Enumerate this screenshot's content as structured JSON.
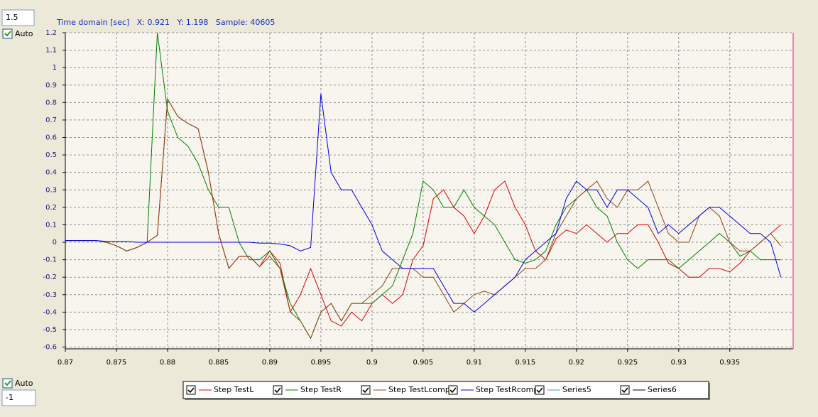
{
  "ui": {
    "top_input": "1.5",
    "top_auto": "Auto",
    "bottom_auto": "Auto",
    "bottom_input": "-1",
    "status": "Time domain [sec]   X: 0.921   Y: 1.198   Sample: 40605"
  },
  "chart_data": {
    "type": "line",
    "x": [
      0.87,
      0.871,
      0.872,
      0.873,
      0.874,
      0.875,
      0.876,
      0.877,
      0.878,
      0.879,
      0.88,
      0.881,
      0.882,
      0.883,
      0.884,
      0.885,
      0.886,
      0.887,
      0.888,
      0.889,
      0.89,
      0.891,
      0.892,
      0.893,
      0.894,
      0.895,
      0.896,
      0.897,
      0.898,
      0.899,
      0.9,
      0.901,
      0.902,
      0.903,
      0.904,
      0.905,
      0.906,
      0.907,
      0.908,
      0.909,
      0.91,
      0.911,
      0.912,
      0.913,
      0.914,
      0.915,
      0.916,
      0.917,
      0.918,
      0.919,
      0.92,
      0.921,
      0.922,
      0.923,
      0.924,
      0.925,
      0.926,
      0.927,
      0.928,
      0.929,
      0.93,
      0.931,
      0.932,
      0.933,
      0.934,
      0.935,
      0.936,
      0.937,
      0.938,
      0.939,
      0.94
    ],
    "series": [
      {
        "name": "Step TestL",
        "color": "#e00000",
        "values": [
          0.01,
          0.01,
          0.01,
          0.01,
          0.0,
          -0.02,
          -0.05,
          -0.03,
          0.0,
          0.04,
          0.82,
          0.72,
          0.68,
          0.65,
          0.4,
          0.05,
          -0.15,
          -0.08,
          -0.08,
          -0.14,
          -0.05,
          -0.12,
          -0.4,
          -0.3,
          -0.15,
          -0.3,
          -0.45,
          -0.48,
          -0.4,
          -0.45,
          -0.35,
          -0.3,
          -0.35,
          -0.3,
          -0.1,
          -0.02,
          0.25,
          0.3,
          0.2,
          0.15,
          0.05,
          0.15,
          0.3,
          0.35,
          0.2,
          0.1,
          -0.05,
          -0.1,
          0.02,
          0.07,
          0.05,
          0.1,
          0.05,
          0.0,
          0.05,
          0.05,
          0.1,
          0.1,
          0.0,
          -0.12,
          -0.15,
          -0.2,
          -0.2,
          -0.15,
          -0.15,
          -0.17,
          -0.12,
          -0.05,
          0.0,
          0.05,
          0.1
        ]
      },
      {
        "name": "Step TestR",
        "color": "#008000",
        "values": [
          0.01,
          0.01,
          0.01,
          0.01,
          0.0,
          -0.02,
          -0.05,
          -0.03,
          0.0,
          1.2,
          0.75,
          0.6,
          0.55,
          0.45,
          0.3,
          0.2,
          0.2,
          0.0,
          -0.1,
          -0.1,
          -0.05,
          -0.15,
          -0.35,
          -0.45,
          -0.55,
          -0.4,
          -0.35,
          -0.45,
          -0.35,
          -0.35,
          -0.35,
          -0.3,
          -0.25,
          -0.1,
          0.05,
          0.35,
          0.3,
          0.2,
          0.2,
          0.3,
          0.2,
          0.15,
          0.1,
          0.0,
          -0.1,
          -0.12,
          -0.1,
          -0.05,
          0.1,
          0.2,
          0.25,
          0.3,
          0.2,
          0.15,
          0.0,
          -0.1,
          -0.15,
          -0.1,
          -0.1,
          -0.1,
          -0.15,
          -0.1,
          -0.05,
          0.0,
          0.05,
          0.0,
          -0.08,
          -0.05,
          -0.1,
          -0.1,
          -0.1
        ]
      },
      {
        "name": "Step TestLcomp",
        "color": "#8b4513",
        "values": [
          0.01,
          0.01,
          0.01,
          0.01,
          0.0,
          -0.02,
          -0.05,
          -0.03,
          0.0,
          0.04,
          0.82,
          0.72,
          0.68,
          0.65,
          0.4,
          0.05,
          -0.15,
          -0.08,
          -0.08,
          -0.14,
          -0.08,
          -0.15,
          -0.4,
          -0.45,
          -0.55,
          -0.4,
          -0.35,
          -0.45,
          -0.35,
          -0.35,
          -0.3,
          -0.25,
          -0.15,
          -0.15,
          -0.15,
          -0.2,
          -0.2,
          -0.3,
          -0.4,
          -0.35,
          -0.3,
          -0.28,
          -0.3,
          -0.25,
          -0.2,
          -0.15,
          -0.15,
          -0.1,
          0.05,
          0.15,
          0.25,
          0.3,
          0.35,
          0.25,
          0.2,
          0.3,
          0.3,
          0.35,
          0.2,
          0.05,
          0.0,
          0.0,
          0.15,
          0.2,
          0.15,
          0.0,
          -0.05,
          -0.05,
          0.0,
          0.05,
          -0.02
        ]
      },
      {
        "name": "Step TestRcomp",
        "color": "#0000dd",
        "values": [
          0.01,
          0.01,
          0.01,
          0.01,
          0.005,
          0.005,
          0.005,
          0.0,
          0.0,
          0.0,
          0.0,
          0.0,
          0.0,
          0.0,
          0.0,
          0.0,
          0.0,
          0.0,
          0.0,
          -0.005,
          -0.005,
          -0.01,
          -0.02,
          -0.05,
          -0.03,
          0.85,
          0.4,
          0.3,
          0.3,
          0.2,
          0.1,
          -0.05,
          -0.1,
          -0.15,
          -0.15,
          -0.15,
          -0.15,
          -0.25,
          -0.35,
          -0.35,
          -0.4,
          -0.35,
          -0.3,
          -0.25,
          -0.2,
          -0.1,
          -0.05,
          0.0,
          0.05,
          0.25,
          0.35,
          0.3,
          0.3,
          0.2,
          0.3,
          0.3,
          0.25,
          0.2,
          0.05,
          0.1,
          0.05,
          0.1,
          0.15,
          0.2,
          0.2,
          0.15,
          0.1,
          0.05,
          0.05,
          0.0,
          -0.2
        ]
      },
      {
        "name": "Series5",
        "color": "#3399cc",
        "values": [
          null,
          null,
          null,
          null,
          null,
          null,
          null,
          null,
          null,
          null,
          null,
          null,
          null,
          null,
          null,
          null,
          null,
          null,
          null,
          null,
          null,
          null,
          null,
          null,
          null,
          null,
          null,
          null,
          null,
          null,
          null,
          null,
          null,
          null,
          null,
          null,
          null,
          null,
          null,
          null,
          null,
          null,
          null,
          null,
          null,
          null,
          null,
          null,
          null,
          null,
          null,
          null,
          null,
          null,
          null,
          null,
          null,
          null,
          null,
          null,
          null,
          null,
          null,
          null,
          null,
          null,
          null,
          null,
          null,
          null,
          null
        ]
      },
      {
        "name": "Series6",
        "color": "#000000",
        "values": [
          null,
          null,
          null,
          null,
          null,
          null,
          null,
          null,
          null,
          null,
          null,
          null,
          null,
          null,
          null,
          null,
          null,
          null,
          null,
          null,
          null,
          null,
          null,
          null,
          null,
          null,
          null,
          null,
          null,
          null,
          null,
          null,
          null,
          null,
          null,
          null,
          null,
          null,
          null,
          null,
          null,
          null,
          null,
          null,
          null,
          null,
          null,
          null,
          null,
          null,
          null,
          null,
          null,
          null,
          null,
          null,
          null,
          null,
          null,
          null,
          null,
          null,
          null,
          null,
          null,
          null,
          null,
          null,
          null,
          null,
          null
        ]
      }
    ],
    "xlim": [
      0.87,
      0.9412
    ],
    "ylim": [
      -0.61,
      1.2
    ],
    "xticks": [
      0.87,
      0.875,
      0.88,
      0.885,
      0.89,
      0.895,
      0.9,
      0.905,
      0.91,
      0.915,
      0.92,
      0.925,
      0.93,
      0.935
    ],
    "yticks": [
      -0.6,
      -0.5,
      -0.4,
      -0.3,
      -0.2,
      -0.1,
      0,
      0.1,
      0.2,
      0.3,
      0.4,
      0.5,
      0.6,
      0.7,
      0.8,
      0.9,
      1,
      1.1,
      1.2
    ],
    "grid": true
  }
}
